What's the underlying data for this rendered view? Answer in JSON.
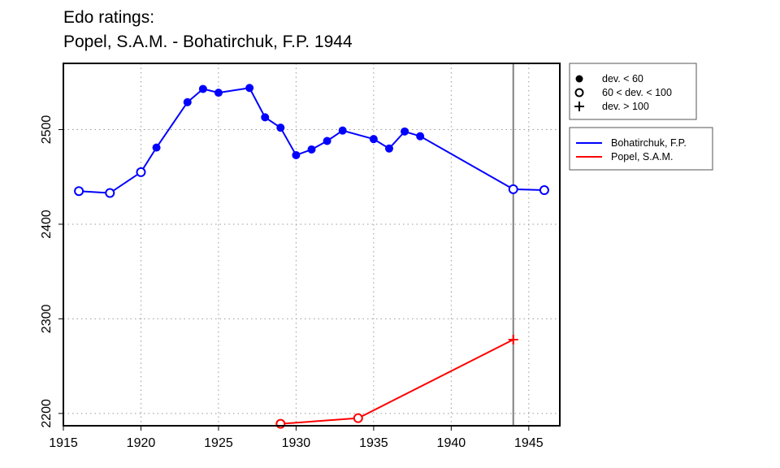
{
  "chart_data": {
    "type": "line",
    "title_lines": [
      "Edo ratings:",
      "Popel, S.A.M. - Bohatirchuk, F.P. 1944"
    ],
    "xlabel": "",
    "ylabel": "",
    "xlim": [
      1915,
      1947
    ],
    "ylim": [
      2187,
      2570
    ],
    "x_ticks": [
      1915,
      1920,
      1925,
      1930,
      1935,
      1940,
      1945
    ],
    "y_ticks": [
      2200,
      2300,
      2400,
      2500
    ],
    "grid": true,
    "marker_year": 1944,
    "series": [
      {
        "name": "Bohatirchuk, F.P.",
        "color": "#0000ff",
        "points": [
          {
            "x": 1916,
            "y": 2435,
            "marker": "open"
          },
          {
            "x": 1918,
            "y": 2433,
            "marker": "open"
          },
          {
            "x": 1920,
            "y": 2455,
            "marker": "open"
          },
          {
            "x": 1921,
            "y": 2481,
            "marker": "filled"
          },
          {
            "x": 1923,
            "y": 2529,
            "marker": "filled"
          },
          {
            "x": 1924,
            "y": 2543,
            "marker": "filled"
          },
          {
            "x": 1925,
            "y": 2539,
            "marker": "filled"
          },
          {
            "x": 1927,
            "y": 2544,
            "marker": "filled"
          },
          {
            "x": 1928,
            "y": 2513,
            "marker": "filled"
          },
          {
            "x": 1929,
            "y": 2502,
            "marker": "filled"
          },
          {
            "x": 1930,
            "y": 2473,
            "marker": "filled"
          },
          {
            "x": 1931,
            "y": 2479,
            "marker": "filled"
          },
          {
            "x": 1932,
            "y": 2488,
            "marker": "filled"
          },
          {
            "x": 1933,
            "y": 2499,
            "marker": "filled"
          },
          {
            "x": 1935,
            "y": 2490,
            "marker": "filled"
          },
          {
            "x": 1936,
            "y": 2480,
            "marker": "filled"
          },
          {
            "x": 1937,
            "y": 2498,
            "marker": "filled"
          },
          {
            "x": 1938,
            "y": 2493,
            "marker": "filled"
          },
          {
            "x": 1944,
            "y": 2437,
            "marker": "open"
          },
          {
            "x": 1946,
            "y": 2436,
            "marker": "open"
          }
        ]
      },
      {
        "name": "Popel, S.A.M.",
        "color": "#ff0000",
        "points": [
          {
            "x": 1929,
            "y": 2189,
            "marker": "open"
          },
          {
            "x": 1934,
            "y": 2195,
            "marker": "open"
          },
          {
            "x": 1944,
            "y": 2278,
            "marker": "plus"
          }
        ]
      }
    ],
    "legend_markers": {
      "placement": "top-right, outside plot",
      "entries": [
        {
          "label": "dev. < 60",
          "marker": "filled"
        },
        {
          "label": "60 < dev. < 100",
          "marker": "open"
        },
        {
          "label": "dev. > 100",
          "marker": "plus"
        }
      ]
    },
    "legend_series": {
      "placement": "right, outside plot",
      "entries": [
        "Bohatirchuk, F.P.",
        "Popel, S.A.M."
      ]
    }
  }
}
